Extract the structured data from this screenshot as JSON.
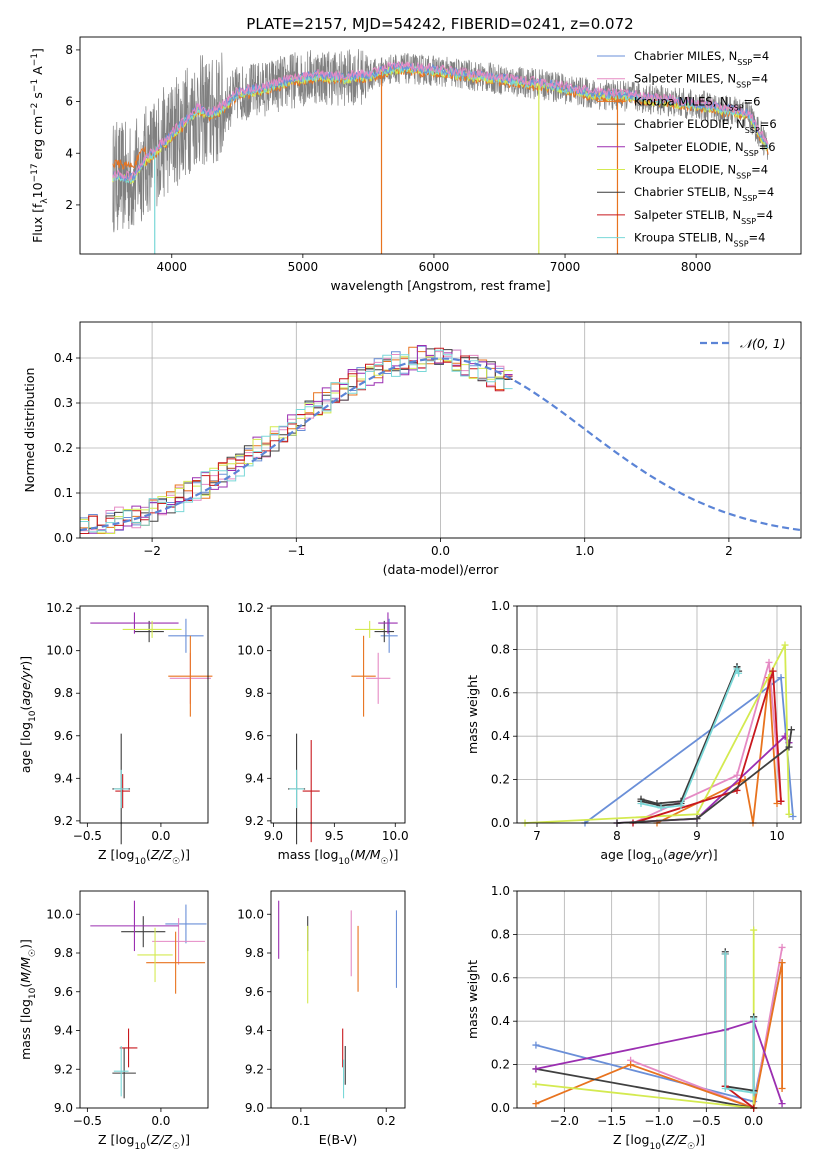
{
  "title": "PLATE=2157, MJD=54242, FIBERID=0241, z=0.072",
  "legend_models": [
    {
      "label": "Chabrier MILES, N",
      "sub": "SSP",
      "suffix": "=4",
      "color": "#6a8fd8"
    },
    {
      "label": "Salpeter MILES, N",
      "sub": "SSP",
      "suffix": "=4",
      "color": "#e58ac4"
    },
    {
      "label": "Kroupa MILES, N",
      "sub": "SSP",
      "suffix": "=6",
      "color": "#e8731f"
    },
    {
      "label": "Chabrier ELODIE, N",
      "sub": "SSP",
      "suffix": "=6",
      "color": "#404040"
    },
    {
      "label": "Salpeter ELODIE, N",
      "sub": "SSP",
      "suffix": "=6",
      "color": "#9b2fb1"
    },
    {
      "label": "Kroupa ELODIE, N",
      "sub": "SSP",
      "suffix": "=4",
      "color": "#d4ea50"
    },
    {
      "label": "Chabrier STELIB, N",
      "sub": "SSP",
      "suffix": "=4",
      "color": "#3a3a3a"
    },
    {
      "label": "Salpeter STELIB, N",
      "sub": "SSP",
      "suffix": "=4",
      "color": "#c8181e"
    },
    {
      "label": "Kroupa STELIB, N",
      "sub": "SSP",
      "suffix": "=4",
      "color": "#7ad8d8"
    }
  ],
  "chart_data": [
    {
      "id": "spectrum",
      "type": "line",
      "xlabel": "wavelength [Angstrom, rest frame]",
      "ylabel": "Flux [f_λ10^-17 erg cm^-2 s^-1 A^-1]",
      "xlim": [
        3300,
        8800
      ],
      "ylim": [
        0.1,
        8.5
      ],
      "xticks": [
        4000,
        5000,
        6000,
        7000,
        8000
      ],
      "yticks": [
        2,
        4,
        6,
        8
      ],
      "data_color": "#808080",
      "model_envelope": {
        "x": [
          3550,
          3700,
          3800,
          3900,
          4000,
          4100,
          4200,
          4300,
          4400,
          4500,
          4700,
          4900,
          5100,
          5300,
          5500,
          5700,
          6000,
          6300,
          6600,
          6900,
          7200,
          7500,
          7800,
          8100,
          8400,
          8550
        ],
        "y": [
          3.1,
          3.0,
          3.7,
          4.2,
          4.7,
          5.2,
          5.7,
          5.5,
          5.8,
          6.3,
          6.5,
          6.8,
          7.0,
          6.9,
          7.0,
          7.3,
          7.2,
          7.0,
          6.8,
          6.6,
          6.3,
          6.2,
          6.0,
          5.8,
          5.5,
          4.2
        ]
      }
    },
    {
      "id": "residuals",
      "type": "histogram",
      "xlabel": "(data-model)/error",
      "ylabel": "Normed distribution",
      "xlim": [
        -2.5,
        2.5
      ],
      "ylim": [
        0,
        0.48
      ],
      "xticks": [
        -2,
        -1,
        0,
        1,
        2
      ],
      "yticks": [
        0.0,
        0.1,
        0.2,
        0.3,
        0.4
      ],
      "reference_curve": {
        "name": "𝒩(0, 1)",
        "color": "#5b84d6"
      },
      "bin_width": 0.1,
      "typical_heights": [
        0.02,
        0.025,
        0.03,
        0.04,
        0.045,
        0.05,
        0.06,
        0.07,
        0.08,
        0.09,
        0.1,
        0.1,
        0.12,
        0.13,
        0.15,
        0.17,
        0.19,
        0.21,
        0.22,
        0.23,
        0.25,
        0.26,
        0.27,
        0.28,
        0.3,
        0.33,
        0.36,
        0.38,
        0.37,
        0.35,
        0.37,
        0.4,
        0.42,
        0.43,
        0.42,
        0.4,
        0.41,
        0.42,
        0.44,
        0.45,
        0.43,
        0.41,
        0.39,
        0.37,
        0.36,
        0.35,
        0.34,
        0.33,
        0.31,
        0.3,
        0.28,
        0.27,
        0.26,
        0.24,
        0.22,
        0.2,
        0.19,
        0.17,
        0.16,
        0.15,
        0.14,
        0.13,
        0.12,
        0.11,
        0.1,
        0.09,
        0.08,
        0.07,
        0.07,
        0.06,
        0.05,
        0.05,
        0.04,
        0.04,
        0.03
      ]
    },
    {
      "id": "age_vs_z",
      "type": "scatter",
      "xlabel": "Z [log10(Z/Z☉)]",
      "ylabel": "age [log10(age/yr)]",
      "xlim": [
        -0.55,
        0.32
      ],
      "ylim": [
        9.19,
        10.21
      ],
      "xticks": [
        -0.5,
        0.0
      ],
      "yticks": [
        9.2,
        9.4,
        9.6,
        9.8,
        10.0,
        10.2
      ],
      "points": [
        {
          "model": 0,
          "x": 0.17,
          "y": 10.07,
          "xerr": 0.12,
          "yerr": 0.08
        },
        {
          "model": 1,
          "x": 0.2,
          "y": 9.87,
          "xerr": 0.14,
          "yerr": 0.12
        },
        {
          "model": 2,
          "x": 0.2,
          "y": 9.88,
          "xerr": 0.15,
          "yerr": 0.19
        },
        {
          "model": 3,
          "x": -0.08,
          "y": 10.09,
          "xerr": 0.1,
          "yerr": 0.05
        },
        {
          "model": 4,
          "x": -0.18,
          "y": 10.13,
          "xerr": 0.3,
          "yerr": 0.05
        },
        {
          "model": 5,
          "x": -0.06,
          "y": 10.1,
          "xerr": 0.2,
          "yerr": 0.04
        },
        {
          "model": 6,
          "x": -0.27,
          "y": 9.35,
          "xerr": 0.06,
          "yerr": 0.26
        },
        {
          "model": 7,
          "x": -0.26,
          "y": 9.34,
          "xerr": 0.05,
          "yerr": 0.08
        },
        {
          "model": 8,
          "x": -0.27,
          "y": 9.35,
          "xerr": 0.05,
          "yerr": 0.09
        }
      ]
    },
    {
      "id": "age_vs_mass",
      "type": "scatter",
      "xlabel": "mass [log10(M/M☉)]",
      "ylabel": "",
      "xlim": [
        8.98,
        10.08
      ],
      "ylim": [
        9.19,
        10.21
      ],
      "xticks": [
        9.0,
        9.5,
        10.0
      ],
      "yticks": [
        9.2,
        9.4,
        9.6,
        9.8,
        10.0,
        10.2
      ],
      "points": [
        {
          "model": 0,
          "x": 9.95,
          "y": 10.07,
          "xerr": 0.07,
          "yerr": 0.08
        },
        {
          "model": 1,
          "x": 9.86,
          "y": 9.87,
          "xerr": 0.1,
          "yerr": 0.12
        },
        {
          "model": 2,
          "x": 9.74,
          "y": 9.88,
          "xerr": 0.1,
          "yerr": 0.19
        },
        {
          "model": 3,
          "x": 9.91,
          "y": 10.09,
          "xerr": 0.08,
          "yerr": 0.05
        },
        {
          "model": 4,
          "x": 9.94,
          "y": 10.13,
          "xerr": 0.08,
          "yerr": 0.05
        },
        {
          "model": 5,
          "x": 9.79,
          "y": 10.1,
          "xerr": 0.12,
          "yerr": 0.04
        },
        {
          "model": 6,
          "x": 9.19,
          "y": 9.35,
          "xerr": 0.07,
          "yerr": 0.26
        },
        {
          "model": 7,
          "x": 9.31,
          "y": 9.34,
          "xerr": 0.07,
          "yerr": 0.24
        },
        {
          "model": 8,
          "x": 9.19,
          "y": 9.35,
          "xerr": 0.06,
          "yerr": 0.09
        }
      ]
    },
    {
      "id": "weight_vs_age",
      "type": "line",
      "xlabel": "age [log10(age/yr)]",
      "ylabel": "mass weight",
      "xlim": [
        6.75,
        10.3
      ],
      "ylim": [
        0,
        1
      ],
      "xticks": [
        7,
        8,
        9,
        10
      ],
      "yticks": [
        0.0,
        0.2,
        0.4,
        0.6,
        0.8,
        1.0
      ],
      "series": [
        {
          "model": 0,
          "x": [
            7.6,
            10.05,
            10.2
          ],
          "y": [
            0.0,
            0.67,
            0.03
          ]
        },
        {
          "model": 1,
          "x": [
            8.2,
            9.5,
            9.9,
            10.05
          ],
          "y": [
            0.0,
            0.22,
            0.74,
            0.1
          ]
        },
        {
          "model": 2,
          "x": [
            8.5,
            9.6,
            9.7,
            9.9,
            10.0
          ],
          "y": [
            0.0,
            0.2,
            0.0,
            0.67,
            0.09
          ]
        },
        {
          "model": 3,
          "x": [
            8.3,
            8.5,
            8.8,
            9.5
          ],
          "y": [
            0.11,
            0.09,
            0.1,
            0.72
          ]
        },
        {
          "model": 4,
          "x": [
            8.0,
            9.0,
            10.1,
            10.15
          ],
          "y": [
            0.0,
            0.02,
            0.4,
            0.37
          ]
        },
        {
          "model": 5,
          "x": [
            6.85,
            9.0,
            10.1,
            10.15
          ],
          "y": [
            0.0,
            0.04,
            0.82,
            0.04
          ]
        },
        {
          "model": 6,
          "x": [
            8.3,
            8.55,
            8.8,
            9.5,
            9.52
          ],
          "y": [
            0.1,
            0.08,
            0.09,
            0.72,
            0.7
          ]
        },
        {
          "model": 7,
          "x": [
            8.2,
            9.5,
            9.95,
            10.05
          ],
          "y": [
            0.0,
            0.15,
            0.7,
            0.1
          ]
        },
        {
          "model": 8,
          "x": [
            8.3,
            8.55,
            8.8,
            9.5,
            9.52
          ],
          "y": [
            0.09,
            0.07,
            0.08,
            0.71,
            0.69
          ]
        },
        {
          "model": 3,
          "x": [
            8.0,
            9.0,
            10.15,
            10.18
          ],
          "y": [
            0.0,
            0.02,
            0.35,
            0.43
          ]
        }
      ]
    },
    {
      "id": "mass_vs_z",
      "type": "scatter",
      "xlabel": "Z [log10(Z/Z☉)]",
      "ylabel": "mass [log10(M/M☉)]",
      "xlim": [
        -0.55,
        0.32
      ],
      "ylim": [
        9.0,
        10.12
      ],
      "xticks": [
        -0.5,
        0.0
      ],
      "yticks": [
        9.0,
        9.2,
        9.4,
        9.6,
        9.8,
        10.0
      ],
      "points": [
        {
          "model": 0,
          "x": 0.17,
          "y": 9.95,
          "xerr": 0.14,
          "yerr": 0.1
        },
        {
          "model": 1,
          "x": 0.12,
          "y": 9.86,
          "xerr": 0.18,
          "yerr": 0.12
        },
        {
          "model": 2,
          "x": 0.1,
          "y": 9.75,
          "xerr": 0.2,
          "yerr": 0.16
        },
        {
          "model": 3,
          "x": -0.12,
          "y": 9.91,
          "xerr": 0.15,
          "yerr": 0.08
        },
        {
          "model": 4,
          "x": -0.18,
          "y": 9.94,
          "xerr": 0.3,
          "yerr": 0.13
        },
        {
          "model": 5,
          "x": -0.04,
          "y": 9.79,
          "xerr": 0.12,
          "yerr": 0.14
        },
        {
          "model": 6,
          "x": -0.25,
          "y": 9.18,
          "xerr": 0.08,
          "yerr": 0.13
        },
        {
          "model": 7,
          "x": -0.22,
          "y": 9.31,
          "xerr": 0.06,
          "yerr": 0.1
        },
        {
          "model": 8,
          "x": -0.27,
          "y": 9.19,
          "xerr": 0.05,
          "yerr": 0.13
        }
      ]
    },
    {
      "id": "mass_vs_ebv",
      "type": "scatter",
      "xlabel": "E(B-V)",
      "ylabel": "",
      "xlim": [
        0.065,
        0.222
      ],
      "ylim": [
        9.0,
        10.12
      ],
      "xticks": [
        0.1,
        0.2
      ],
      "yticks": [
        9.0,
        9.2,
        9.4,
        9.6,
        9.8,
        10.0
      ],
      "points": [
        {
          "model": 0,
          "x": 0.212,
          "y": 9.82,
          "xerr": 0.0,
          "yerr": 0.2
        },
        {
          "model": 1,
          "x": 0.159,
          "y": 9.85,
          "xerr": 0.0,
          "yerr": 0.17
        },
        {
          "model": 2,
          "x": 0.167,
          "y": 9.77,
          "xerr": 0.0,
          "yerr": 0.17
        },
        {
          "model": 3,
          "x": 0.108,
          "y": 9.9,
          "xerr": 0.0,
          "yerr": 0.09
        },
        {
          "model": 4,
          "x": 0.074,
          "y": 9.92,
          "xerr": 0.0,
          "yerr": 0.15
        },
        {
          "model": 5,
          "x": 0.108,
          "y": 9.74,
          "xerr": 0.0,
          "yerr": 0.2
        },
        {
          "model": 6,
          "x": 0.152,
          "y": 9.22,
          "xerr": 0.0,
          "yerr": 0.1
        },
        {
          "model": 7,
          "x": 0.149,
          "y": 9.31,
          "xerr": 0.0,
          "yerr": 0.1
        },
        {
          "model": 8,
          "x": 0.15,
          "y": 9.15,
          "xerr": 0.0,
          "yerr": 0.1
        }
      ]
    },
    {
      "id": "weight_vs_z",
      "type": "line",
      "xlabel": "Z [log10(Z/Z☉)]",
      "ylabel": "mass weight",
      "xlim": [
        -2.5,
        0.5
      ],
      "ylim": [
        0,
        1
      ],
      "xticks": [
        -2.0,
        -1.5,
        -1.0,
        -0.5,
        0.0
      ],
      "yticks": [
        0.0,
        0.2,
        0.4,
        0.6,
        0.8,
        1.0
      ],
      "series": [
        {
          "model": 0,
          "x": [
            -2.3,
            0.0,
            0.3
          ],
          "y": [
            0.29,
            0.03,
            0.67
          ]
        },
        {
          "model": 1,
          "x": [
            -1.3,
            0.0,
            0.3
          ],
          "y": [
            0.22,
            0.0,
            0.74
          ]
        },
        {
          "model": 2,
          "x": [
            -2.3,
            -1.3,
            0.0,
            0.3,
            0.3
          ],
          "y": [
            0.02,
            0.2,
            0.0,
            0.67,
            0.09
          ]
        },
        {
          "model": 3,
          "x": [
            -2.3,
            0.0,
            0.0
          ],
          "y": [
            0.18,
            0.0,
            0.42
          ]
        },
        {
          "model": 4,
          "x": [
            -2.3,
            -0.3,
            0.0,
            0.3
          ],
          "y": [
            0.18,
            0.36,
            0.4,
            0.02
          ]
        },
        {
          "model": 5,
          "x": [
            -2.3,
            0.0,
            0.0
          ],
          "y": [
            0.11,
            0.0,
            0.82
          ]
        },
        {
          "model": 6,
          "x": [
            -0.3,
            -0.3,
            0.0,
            0.0
          ],
          "y": [
            0.72,
            0.1,
            0.08,
            0.42
          ]
        },
        {
          "model": 7,
          "x": [
            -0.3,
            -0.3,
            0.0
          ],
          "y": [
            0.71,
            0.1,
            0.0
          ]
        },
        {
          "model": 8,
          "x": [
            -0.3,
            -0.3,
            0.0,
            0.0
          ],
          "y": [
            0.71,
            0.09,
            0.07,
            0.41
          ]
        }
      ]
    }
  ]
}
